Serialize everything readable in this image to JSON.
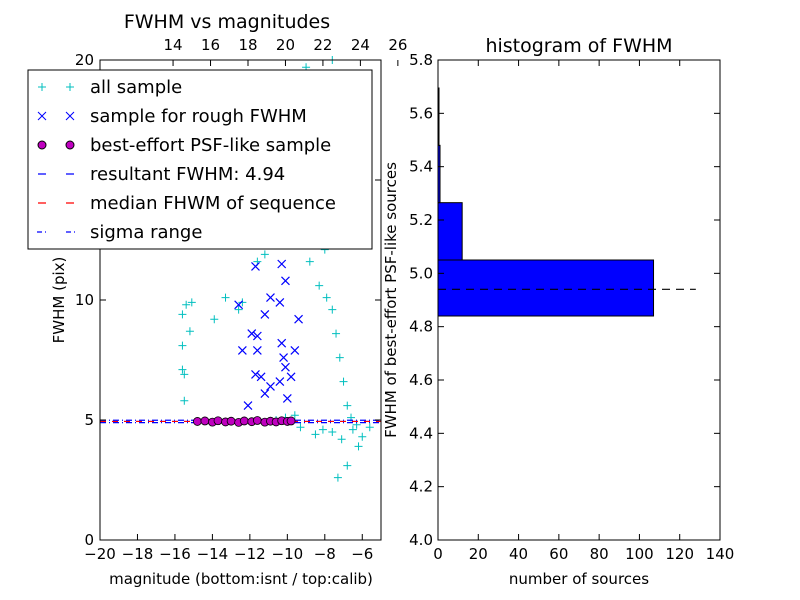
{
  "chart_data": [
    {
      "type": "scatter",
      "title": "FWHM vs magnitudes",
      "xlabel": "magnitude (bottom:isnt / top:calib)",
      "ylabel": "FWHM (pix)",
      "xlim": [
        -20,
        -5
      ],
      "ylim": [
        0,
        20
      ],
      "x_ticks": [
        "−20",
        "−18",
        "−16",
        "−14",
        "−12",
        "−10",
        "−8",
        "−6"
      ],
      "x_tick_values": [
        -20,
        -18,
        -16,
        -14,
        -12,
        -10,
        -8,
        -6
      ],
      "y_ticks": [
        "0",
        "5",
        "10",
        "15",
        "20"
      ],
      "y_tick_values": [
        0,
        5,
        10,
        15,
        20
      ],
      "top_ticks": [
        "14",
        "16",
        "18",
        "20",
        "22",
        "24",
        "26"
      ],
      "top_tick_values": [
        -16.1,
        -14.1,
        -12.1,
        -10.1,
        -8.1,
        -6.1,
        -4.1
      ],
      "legend_position": "upper-left",
      "series": [
        {
          "name": "all sample",
          "marker": "+",
          "color": "#00bfbf",
          "points": [
            [
              -15.4,
              9.8
            ],
            [
              -15.1,
              9.9
            ],
            [
              -15.6,
              9.4
            ],
            [
              -15.2,
              8.7
            ],
            [
              -15.6,
              8.1
            ],
            [
              -15.6,
              7.1
            ],
            [
              -15.5,
              6.9
            ],
            [
              -15.5,
              5.8
            ],
            [
              -13.3,
              10.1
            ],
            [
              -13.9,
              9.2
            ],
            [
              -12.6,
              9.6
            ],
            [
              -12.4,
              9.9
            ],
            [
              -11.6,
              11.6
            ],
            [
              -11.2,
              11.9
            ],
            [
              -10.9,
              13.3
            ],
            [
              -10.5,
              15.6
            ],
            [
              -10.9,
              14.0
            ],
            [
              -9.0,
              19.7
            ],
            [
              -8.6,
              19.1
            ],
            [
              -8.1,
              19.4
            ],
            [
              -7.6,
              20.0
            ],
            [
              -8.9,
              18.7
            ],
            [
              -8.4,
              17.1
            ],
            [
              -10.0,
              13.7
            ],
            [
              -9.3,
              12.6
            ],
            [
              -8.8,
              11.6
            ],
            [
              -8.3,
              10.6
            ],
            [
              -7.9,
              10.1
            ],
            [
              -7.6,
              9.6
            ],
            [
              -9.7,
              14.8
            ],
            [
              -8.0,
              12.1
            ],
            [
              -7.4,
              8.6
            ],
            [
              -7.2,
              7.6
            ],
            [
              -7.0,
              6.6
            ],
            [
              -6.8,
              5.6
            ],
            [
              -6.6,
              5.1
            ],
            [
              -6.5,
              4.6
            ],
            [
              -7.3,
              2.6
            ],
            [
              -6.8,
              3.1
            ],
            [
              -6.2,
              3.9
            ],
            [
              -6.0,
              4.3
            ],
            [
              -5.6,
              4.7
            ],
            [
              -6.3,
              4.8
            ],
            [
              -7.1,
              4.2
            ],
            [
              -7.6,
              4.5
            ],
            [
              -8.1,
              4.6
            ],
            [
              -8.5,
              4.4
            ],
            [
              -9.3,
              4.7
            ],
            [
              -9.6,
              5.2
            ],
            [
              -10.1,
              5.1
            ],
            [
              -10.6,
              5.0
            ],
            [
              -11.2,
              4.9
            ]
          ]
        },
        {
          "name": "sample for rough FWHM",
          "marker": "x",
          "color": "#0000ff",
          "points": [
            [
              -12.6,
              9.8
            ],
            [
              -11.7,
              11.4
            ],
            [
              -11.9,
              8.6
            ],
            [
              -11.6,
              8.5
            ],
            [
              -11.6,
              7.9
            ],
            [
              -11.4,
              6.8
            ],
            [
              -11.2,
              6.1
            ],
            [
              -10.9,
              10.1
            ],
            [
              -10.4,
              9.9
            ],
            [
              -10.3,
              8.2
            ],
            [
              -10.2,
              7.6
            ],
            [
              -10.1,
              7.2
            ],
            [
              -10.4,
              6.6
            ],
            [
              -10.9,
              6.4
            ],
            [
              -10.0,
              5.9
            ],
            [
              -9.8,
              6.8
            ],
            [
              -9.6,
              7.9
            ],
            [
              -9.4,
              9.2
            ],
            [
              -10.1,
              10.8
            ],
            [
              -10.3,
              11.5
            ],
            [
              -11.2,
              9.4
            ],
            [
              -11.7,
              6.9
            ],
            [
              -12.4,
              7.9
            ],
            [
              -12.1,
              5.6
            ]
          ]
        },
        {
          "name": "best-effort PSF-like sample",
          "marker": "o",
          "color": "#bf00bf",
          "points": [
            [
              -14.8,
              4.94
            ],
            [
              -14.4,
              4.96
            ],
            [
              -14.0,
              4.91
            ],
            [
              -13.7,
              4.97
            ],
            [
              -13.3,
              4.92
            ],
            [
              -13.0,
              4.95
            ],
            [
              -12.6,
              4.9
            ],
            [
              -12.3,
              4.96
            ],
            [
              -11.9,
              4.93
            ],
            [
              -11.6,
              4.98
            ],
            [
              -11.2,
              4.91
            ],
            [
              -10.9,
              4.95
            ],
            [
              -10.6,
              4.92
            ],
            [
              -10.3,
              4.97
            ],
            [
              -10.0,
              4.94
            ],
            [
              -9.8,
              4.96
            ]
          ]
        }
      ],
      "lines": [
        {
          "name": "resultant FWHM: 4.94",
          "style": "dashed",
          "color": "#0000ff",
          "y": 4.94
        },
        {
          "name": "median FHWM of sequence",
          "style": "dashed",
          "color": "#ff0000",
          "y": 4.94
        },
        {
          "name": "sigma range",
          "style": "dashdot",
          "color": "#0000ff",
          "y": [
            4.89,
            4.99
          ]
        }
      ]
    },
    {
      "type": "bar",
      "orientation": "horizontal",
      "title": "histogram of FWHM",
      "xlabel": "number of sources",
      "ylabel": "FWHM of best-effort PSF-like sources",
      "xlim": [
        0,
        140
      ],
      "ylim": [
        4.0,
        5.8
      ],
      "x_ticks": [
        "0",
        "20",
        "40",
        "60",
        "80",
        "100",
        "120",
        "140"
      ],
      "x_tick_values": [
        0,
        20,
        40,
        60,
        80,
        100,
        120,
        140
      ],
      "y_ticks": [
        "4.0",
        "4.2",
        "4.4",
        "4.6",
        "4.8",
        "5.0",
        "5.2",
        "5.4",
        "5.6",
        "5.8"
      ],
      "y_tick_values": [
        4.0,
        4.2,
        4.4,
        4.6,
        4.8,
        5.0,
        5.2,
        5.4,
        5.6,
        5.8
      ],
      "bar_color": "#0000ff",
      "bins": [
        {
          "y0": 4.84,
          "y1": 5.05,
          "count": 107
        },
        {
          "y0": 5.05,
          "y1": 5.265,
          "count": 12
        },
        {
          "y0": 5.265,
          "y1": 5.48,
          "count": 1
        },
        {
          "y0": 5.48,
          "y1": 5.695,
          "count": 0.3
        }
      ],
      "reference_line": {
        "y": 4.94,
        "x_range": [
          0,
          128
        ],
        "style": "dashed",
        "color": "#000000"
      }
    }
  ]
}
